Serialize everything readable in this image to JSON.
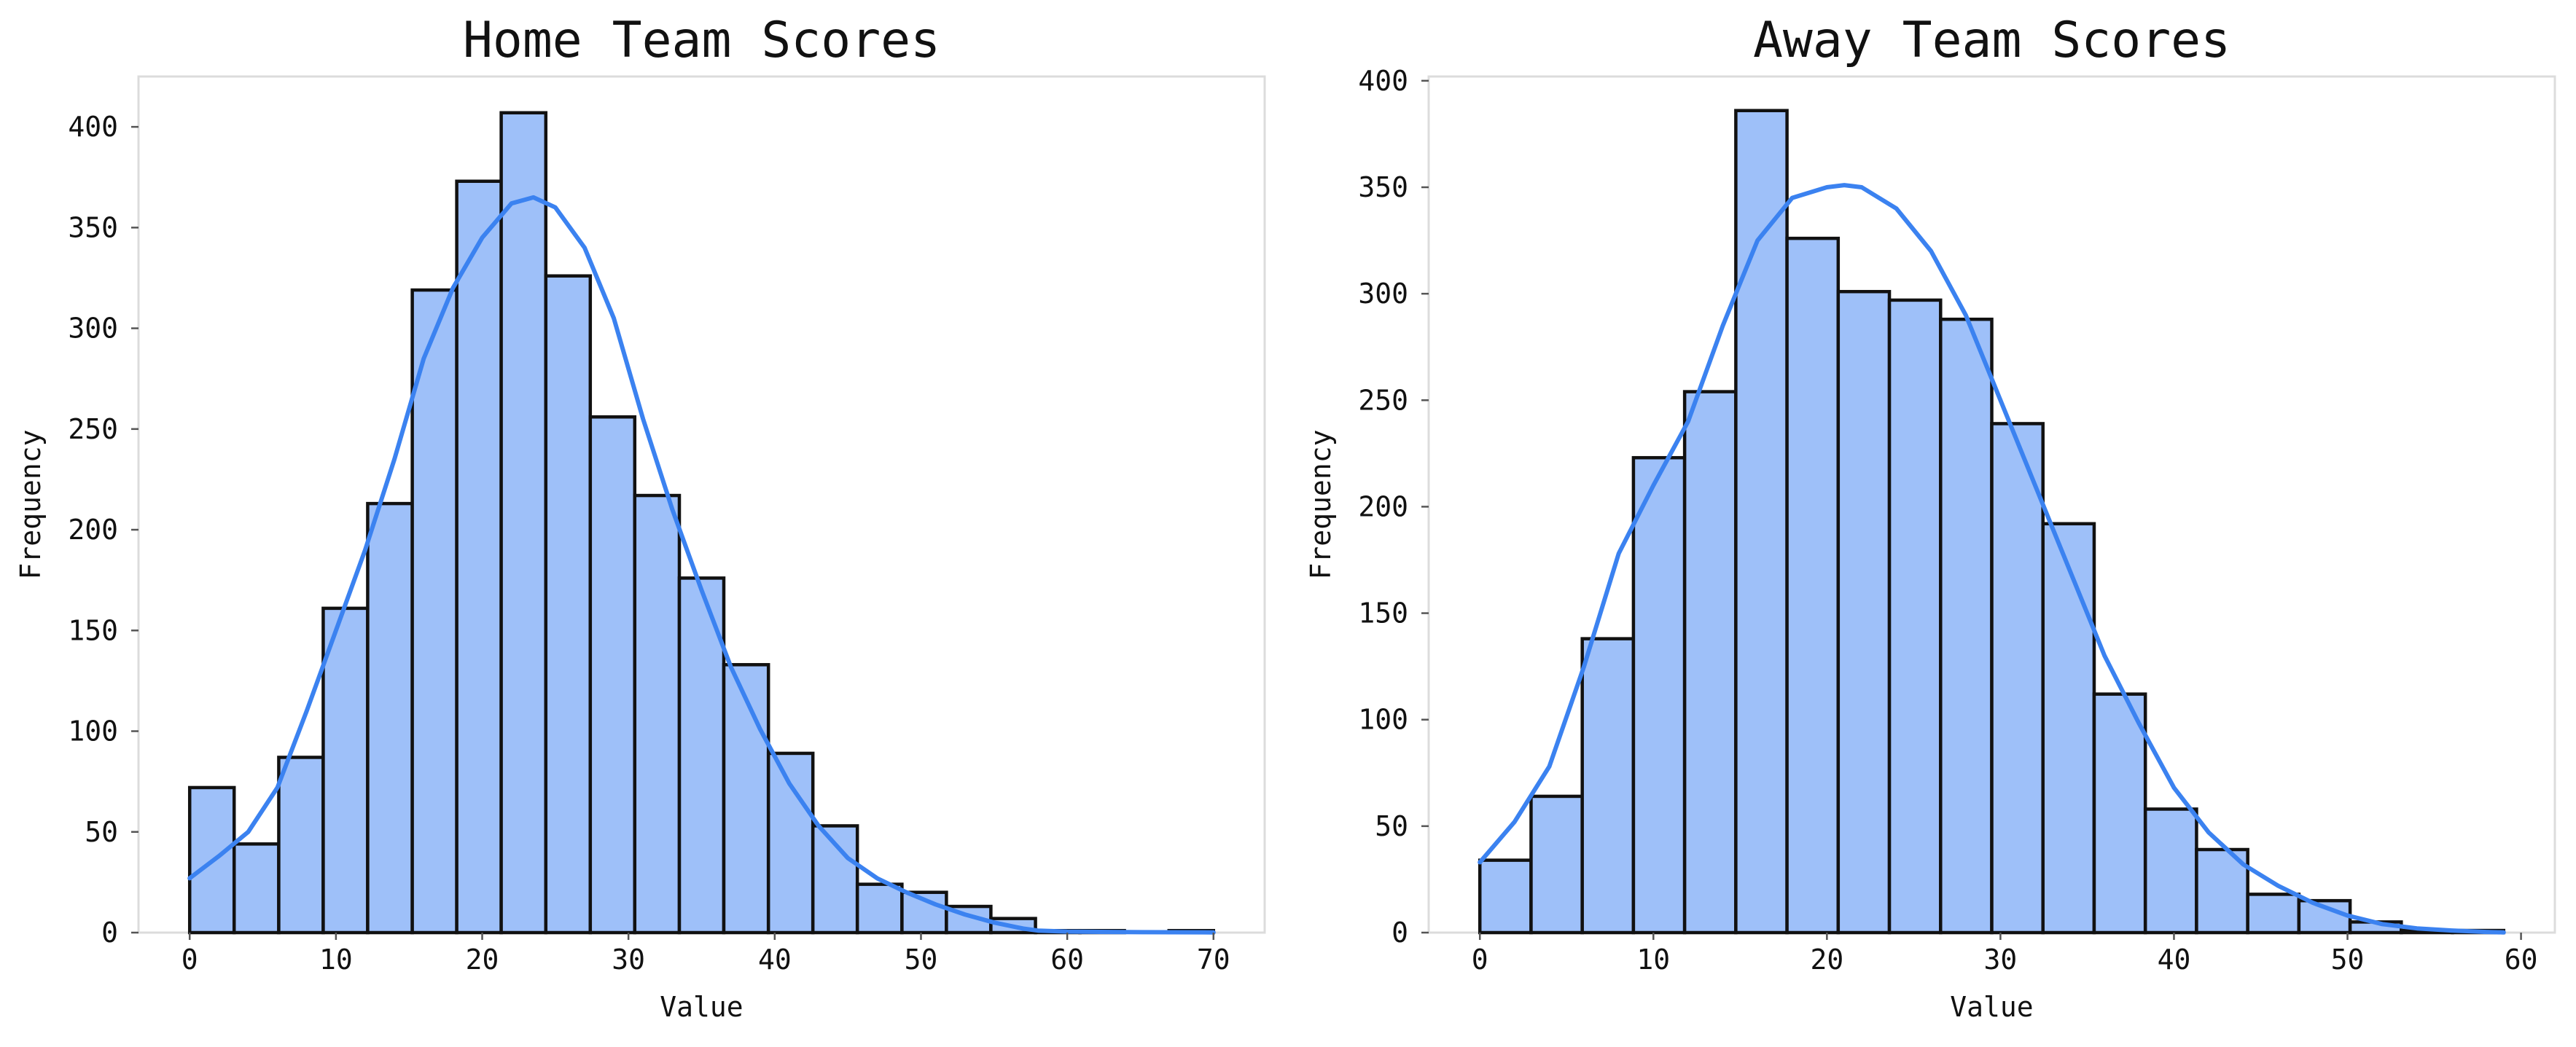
{
  "chart_data": [
    {
      "type": "bar",
      "title": "Home Team Scores",
      "xlabel": "Value",
      "ylabel": "Frequency",
      "xlim": [
        -3.5,
        73.5
      ],
      "ylim": [
        0,
        425
      ],
      "xticks": [
        0,
        10,
        20,
        30,
        40,
        50,
        60,
        70
      ],
      "yticks": [
        0,
        50,
        100,
        150,
        200,
        250,
        300,
        350,
        400
      ],
      "bin_edges": [
        0,
        3.04,
        6.09,
        9.13,
        12.17,
        15.22,
        18.26,
        21.3,
        24.35,
        27.39,
        30.43,
        33.48,
        36.52,
        39.57,
        42.61,
        45.65,
        48.7,
        51.74,
        54.78,
        57.83,
        60.87,
        63.91,
        66.96,
        70
      ],
      "values": [
        72,
        44,
        87,
        161,
        213,
        319,
        373,
        407,
        326,
        256,
        217,
        176,
        133,
        89,
        53,
        24,
        20,
        13,
        7,
        1,
        1,
        0,
        1
      ],
      "kde": {
        "x": [
          0,
          2,
          4,
          6,
          8,
          10,
          12,
          14,
          16,
          18,
          20,
          22,
          23.5,
          25,
          27,
          29,
          31,
          33,
          35,
          37,
          39,
          41,
          43,
          45,
          47,
          49,
          51,
          53,
          55,
          57,
          58,
          60,
          65,
          70
        ],
        "y": [
          27,
          38,
          50,
          72,
          110,
          150,
          190,
          235,
          285,
          320,
          345,
          362,
          365,
          360,
          340,
          305,
          255,
          210,
          170,
          132,
          101,
          74,
          53,
          37,
          27,
          20,
          14,
          9,
          5,
          2,
          1,
          0.5,
          0.2,
          0.1
        ]
      }
    },
    {
      "type": "bar",
      "title": "Away Team Scores",
      "xlabel": "Value",
      "ylabel": "Frequency",
      "xlim": [
        -2.95,
        61.95
      ],
      "ylim": [
        0,
        402
      ],
      "xticks": [
        0,
        10,
        20,
        30,
        40,
        50,
        60
      ],
      "yticks": [
        0,
        50,
        100,
        150,
        200,
        250,
        300,
        350,
        400
      ],
      "bin_edges": [
        0,
        2.95,
        5.9,
        8.85,
        11.8,
        14.75,
        17.7,
        20.65,
        23.6,
        26.55,
        29.5,
        32.45,
        35.4,
        38.35,
        41.3,
        44.25,
        47.2,
        50.15,
        53.1,
        56.05,
        59
      ],
      "values": [
        34,
        64,
        138,
        223,
        254,
        386,
        326,
        301,
        297,
        288,
        239,
        192,
        112,
        58,
        39,
        18,
        15,
        5,
        1,
        1
      ],
      "kde": {
        "x": [
          0,
          2,
          4,
          6,
          8,
          10,
          12,
          14,
          16,
          18,
          20,
          21,
          22,
          24,
          26,
          28,
          30,
          32,
          34,
          36,
          38,
          40,
          42,
          44,
          46,
          48,
          50,
          52,
          54,
          56,
          58,
          59
        ],
        "y": [
          33,
          52,
          78,
          125,
          178,
          210,
          240,
          285,
          325,
          345,
          350,
          351,
          350,
          340,
          320,
          290,
          250,
          210,
          170,
          130,
          98,
          68,
          47,
          32,
          22,
          14,
          8,
          4,
          2,
          1,
          0.3,
          0.1
        ]
      }
    }
  ]
}
